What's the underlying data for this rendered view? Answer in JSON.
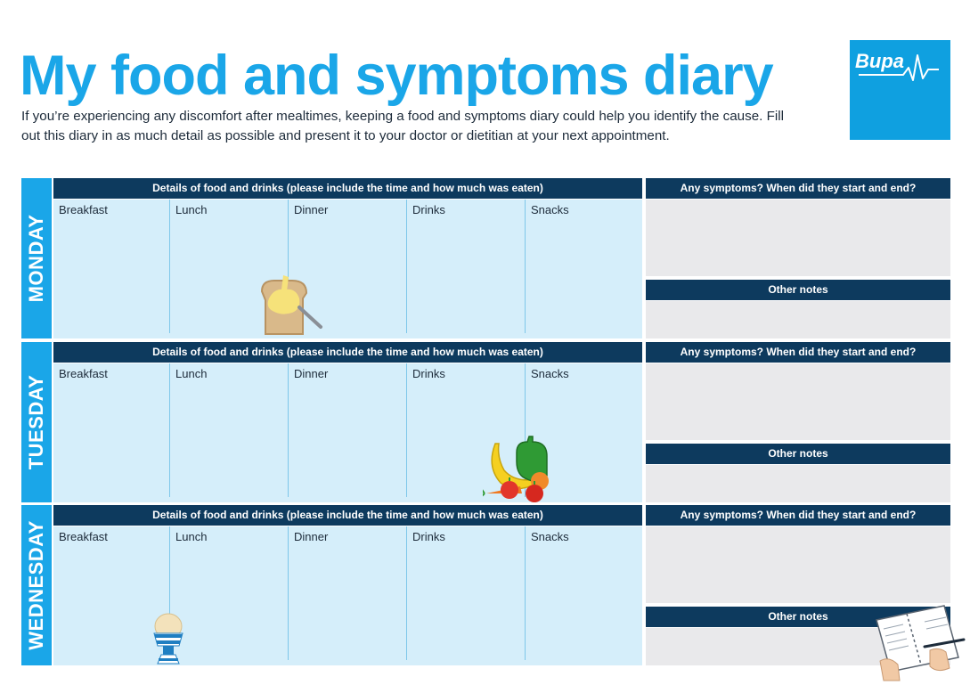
{
  "header": {
    "title": "My food and symptoms diary",
    "intro": "If you’re experiencing any discomfort after mealtimes, keeping a food and symptoms diary could help you identify the cause. Fill out this diary in as much detail as possible and present it to your doctor or dietitian at your next appointment.",
    "logo_text": "Bupa"
  },
  "days": [
    {
      "name": "MONDAY",
      "food_header": "Details of food and drinks (please include the time and how much was eaten)",
      "columns": [
        "Breakfast",
        "Lunch",
        "Dinner",
        "Drinks",
        "Snacks"
      ],
      "symptoms_header": "Any symptoms? When did they start and end?",
      "notes_header": "Other notes",
      "illustration": "toast-with-butter"
    },
    {
      "name": "TUESDAY",
      "food_header": "Details of food and drinks (please include the time and how much was eaten)",
      "columns": [
        "Breakfast",
        "Lunch",
        "Dinner",
        "Drinks",
        "Snacks"
      ],
      "symptoms_header": "Any symptoms? When did they start and end?",
      "notes_header": "Other notes",
      "illustration": "fruit-and-vegetables"
    },
    {
      "name": "WEDNESDAY",
      "food_header": "Details of food and drinks (please include the time and how much was eaten)",
      "columns": [
        "Breakfast",
        "Lunch",
        "Dinner",
        "Drinks",
        "Snacks"
      ],
      "symptoms_header": "Any symptoms? When did they start and end?",
      "notes_header": "Other notes",
      "illustration": "boiled-egg-in-cup"
    }
  ],
  "colors": {
    "title": "#1aa6e8",
    "logo_bg": "#0fa0e0",
    "day_label": "#1aa6e8",
    "header_bar": "#0d3a5e",
    "food_area": "#d5eefa",
    "symptom_area": "#e9e9eb"
  },
  "decorations": [
    "notebook-with-pen-icon"
  ]
}
